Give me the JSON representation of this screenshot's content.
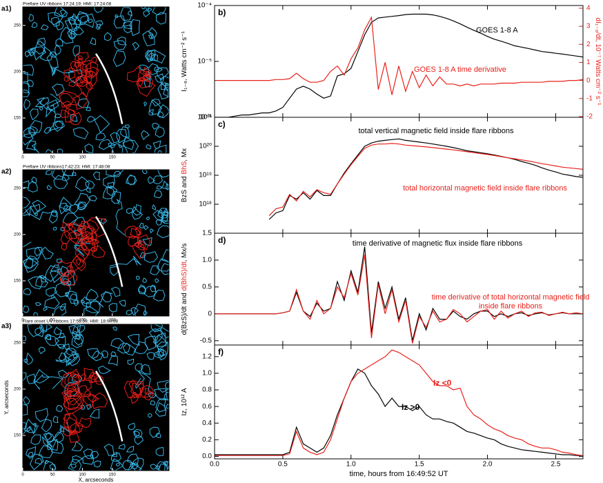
{
  "chart_data": [
    {
      "type": "image",
      "label": "a1)",
      "title": "Preflare UV ribbons 17:24:19; HMI: 17:24:08",
      "xlim": [
        0,
        245
      ],
      "ylim": [
        112,
        270
      ],
      "xticks": [
        0,
        50,
        100,
        150
      ],
      "yticks": [
        150,
        200,
        250
      ]
    },
    {
      "type": "image",
      "label": "a2)",
      "title": "Preflare UV ribbons17:42:23; HMI: 17:48:08",
      "xlim": [
        0,
        245
      ],
      "ylim": [
        112,
        270
      ],
      "xticks": [
        0,
        50,
        100,
        150
      ],
      "yticks": [
        150,
        200,
        250
      ]
    },
    {
      "type": "image",
      "label": "a3)",
      "title": "Flare onset UV ribbons 17:55:39; HMI: 18:00:08",
      "xlim": [
        0,
        245
      ],
      "ylim": [
        112,
        270
      ],
      "xticks": [
        0,
        50,
        100,
        150
      ],
      "yticks": [
        150,
        200,
        250
      ],
      "xlabel": "X, arcseconds",
      "ylabel": "Y, arcseconds"
    },
    {
      "type": "line",
      "label": "b)",
      "ylog": true,
      "xlim": [
        0,
        2.7
      ],
      "ylim": [
        1e-06,
        0.0001
      ],
      "yticks": [
        {
          "value": 1e-06,
          "label": "10⁻⁶"
        },
        {
          "value": 1e-05,
          "label": "10⁻⁵"
        },
        {
          "value": 0.0001,
          "label": "10⁻⁴"
        }
      ],
      "y2lim": [
        -2.04,
        4.15
      ],
      "y2ticks": [
        -2,
        -1,
        0,
        1,
        2,
        3,
        4
      ],
      "ylabel": [
        {
          "text": "I₁₋₈, Watts cm⁻² s⁻¹",
          "color": "#000000"
        }
      ],
      "y2label": [
        {
          "text": "dI₁₋₈/dt, 10⁻⁷ Watts cm⁻² s⁻¹",
          "color": "#e8201a"
        }
      ],
      "x": [
        0,
        0.05,
        0.1,
        0.15,
        0.2,
        0.25,
        0.3,
        0.35,
        0.4,
        0.45,
        0.5,
        0.55,
        0.6,
        0.65,
        0.7,
        0.75,
        0.8,
        0.85,
        0.9,
        0.95,
        1,
        1.05,
        1.1,
        1.15,
        1.2,
        1.25,
        1.3,
        1.35,
        1.4,
        1.45,
        1.5,
        1.55,
        1.6,
        1.65,
        1.7,
        1.75,
        1.8,
        1.85,
        1.9,
        1.95,
        2,
        2.05,
        2.1,
        2.15,
        2.2,
        2.25,
        2.3,
        2.35,
        2.4,
        2.45,
        2.5,
        2.55,
        2.6,
        2.65,
        2.7
      ],
      "series": [
        {
          "name": "GOES 1-8 A",
          "color": "#000000",
          "values": [
            1e-06,
            1e-06,
            1e-06,
            1.05e-06,
            1.1e-06,
            1.1e-06,
            1.15e-06,
            1.2e-06,
            1.2e-06,
            1.3e-06,
            1.5e-06,
            2.2e-06,
            3.2e-06,
            3.6e-06,
            3.2e-06,
            2.6e-06,
            2.2e-06,
            2.4e-06,
            5.5e-06,
            6e-06,
            7.5e-06,
            1.5e-05,
            3e-05,
            5e-05,
            6e-05,
            6.2e-05,
            6.4e-05,
            6.6e-05,
            6.9e-05,
            7e-05,
            7e-05,
            7e-05,
            6.8e-05,
            6.4e-05,
            5.9e-05,
            5.3e-05,
            4.7e-05,
            4.1e-05,
            3.6e-05,
            3.2e-05,
            2.8e-05,
            2.5e-05,
            2.3e-05,
            2.1e-05,
            1.9e-05,
            1.8e-05,
            1.7e-05,
            1.6e-05,
            1.5e-05,
            1.45e-05,
            1.4e-05,
            1.35e-05,
            1.3e-05,
            1.25e-05,
            1.2e-05
          ]
        },
        {
          "name": "GOES 1-8 A time derivative",
          "color": "#e8201a",
          "axis": "y2",
          "values": [
            0,
            0,
            0,
            0,
            0,
            0,
            0,
            0,
            0,
            0.05,
            0.05,
            0.1,
            0.4,
            0.1,
            -0.1,
            -0.1,
            0,
            0.5,
            0.8,
            0.3,
            1.2,
            1.8,
            2.8,
            3.5,
            -0.5,
            1.0,
            -0.8,
            0.8,
            -0.6,
            0.5,
            -0.4,
            0.3,
            -0.3,
            0.2,
            -0.2,
            -0.2,
            -0.3,
            -0.2,
            -0.3,
            -0.2,
            -0.2,
            -0.2,
            -0.15,
            -0.15,
            -0.15,
            -0.1,
            -0.1,
            -0.1,
            -0.1,
            -0.05,
            -0.05,
            -0.05,
            0,
            0,
            0.05
          ]
        }
      ]
    },
    {
      "type": "line",
      "label": "c)",
      "ylog": true,
      "xlim": [
        0,
        2.7
      ],
      "ylim": [
        1e+17,
        1e+21
      ],
      "yticks": [
        {
          "value": 1e+18,
          "label": "10¹⁸"
        },
        {
          "value": 1e+19,
          "label": "10¹⁹"
        },
        {
          "value": 1e+20,
          "label": "10²⁰"
        },
        {
          "value": 1e+21,
          "label": "10²¹"
        }
      ],
      "ylabel": [
        {
          "text": "BzS and ",
          "color": "#000000"
        },
        {
          "text": "BhS",
          "color": "#e8201a"
        },
        {
          "text": ", Mx",
          "color": "#000000"
        }
      ],
      "x": [
        0,
        0.05,
        0.1,
        0.15,
        0.2,
        0.25,
        0.3,
        0.35,
        0.4,
        0.45,
        0.5,
        0.55,
        0.6,
        0.65,
        0.7,
        0.75,
        0.8,
        0.85,
        0.9,
        0.95,
        1,
        1.05,
        1.1,
        1.15,
        1.2,
        1.25,
        1.3,
        1.35,
        1.4,
        1.45,
        1.5,
        1.55,
        1.6,
        1.65,
        1.7,
        1.75,
        1.8,
        1.85,
        1.9,
        1.95,
        2,
        2.05,
        2.1,
        2.15,
        2.2,
        2.25,
        2.3,
        2.35,
        2.4,
        2.45,
        2.5,
        2.55,
        2.6,
        2.65,
        2.7
      ],
      "series": [
        {
          "name": "total vertical magnetic field inside flare ribbons",
          "color": "#000000",
          "values": [
            null,
            null,
            null,
            null,
            null,
            null,
            null,
            null,
            3e+17,
            5e+17,
            6e+17,
            2e+18,
            1.5e+18,
            2.5e+18,
            1.5e+18,
            3e+18,
            2e+18,
            2e+18,
            5e+18,
            1.2e+19,
            2.5e+19,
            5e+19,
            1e+20,
            1.3e+20,
            1.5e+20,
            1.6e+20,
            1.7e+20,
            1.8e+20,
            1.6e+20,
            1.5e+20,
            1.4e+20,
            1.3e+20,
            1.2e+20,
            1.1e+20,
            1e+20,
            9e+19,
            8e+19,
            7e+19,
            6.5e+19,
            6e+19,
            5.5e+19,
            5e+19,
            4.5e+19,
            4e+19,
            3.5e+19,
            3e+19,
            2.6e+19,
            2.2e+19,
            1.8e+19,
            1.5e+19,
            1.3e+19,
            1.1e+19,
            1e+19,
            9e+18,
            8.5e+18
          ]
        },
        {
          "name": "total horizontal magnetic field inside flare ribbons",
          "color": "#e8201a",
          "values": [
            null,
            null,
            null,
            null,
            null,
            null,
            null,
            null,
            4e+17,
            7e+17,
            8e+17,
            2.2e+18,
            1.3e+18,
            2.8e+18,
            1.8e+18,
            3.2e+18,
            2.5e+18,
            2.2e+18,
            5e+18,
            1.1e+19,
            2.3e+19,
            4.5e+19,
            8.5e+19,
            1.1e+20,
            1.2e+20,
            1.2e+20,
            1.25e+20,
            1.2e+20,
            1.1e+20,
            1.05e+20,
            1e+20,
            9.5e+19,
            9e+19,
            8.5e+19,
            8e+19,
            7.5e+19,
            7e+19,
            6.5e+19,
            6e+19,
            5.6e+19,
            5.2e+19,
            4.8e+19,
            4.4e+19,
            4e+19,
            3.7e+19,
            3.4e+19,
            3.1e+19,
            2.8e+19,
            2.5e+19,
            2.3e+19,
            2.1e+19,
            1.9e+19,
            1.8e+19,
            1.7e+19,
            1.6e+19
          ]
        }
      ]
    },
    {
      "type": "line",
      "label": "d)",
      "xlim": [
        0,
        2.7
      ],
      "ylim": [
        -0.58,
        1.5
      ],
      "yticks": [
        -0.5,
        0,
        0.5,
        {
          "value": 1,
          "label": "1.0"
        },
        1.5
      ],
      "ylabel": [
        {
          "text": "d(BzS)/dt and ",
          "color": "#000000"
        },
        {
          "text": "d(BhS)/dt",
          "color": "#e8201a"
        },
        {
          "text": ", Mx/s",
          "color": "#000000"
        }
      ],
      "x": [
        0,
        0.05,
        0.1,
        0.15,
        0.2,
        0.25,
        0.3,
        0.35,
        0.4,
        0.45,
        0.5,
        0.55,
        0.6,
        0.65,
        0.7,
        0.75,
        0.8,
        0.85,
        0.9,
        0.95,
        1,
        1.05,
        1.1,
        1.15,
        1.2,
        1.25,
        1.3,
        1.35,
        1.4,
        1.45,
        1.5,
        1.55,
        1.6,
        1.65,
        1.7,
        1.75,
        1.8,
        1.85,
        1.9,
        1.95,
        2,
        2.05,
        2.1,
        2.15,
        2.2,
        2.25,
        2.3,
        2.35,
        2.4,
        2.45,
        2.5,
        2.55,
        2.6,
        2.65,
        2.7
      ],
      "series": [
        {
          "name": "time derivative of magnetic flux inside flare ribbons",
          "color": "#000000",
          "values": [
            0,
            0,
            0,
            0,
            0,
            0,
            0,
            0,
            0,
            0,
            0.02,
            0.05,
            0.4,
            0.05,
            -0.05,
            0.2,
            0.05,
            0.1,
            0.6,
            0.25,
            0.8,
            0.4,
            1.25,
            -0.35,
            0.6,
            0.1,
            0.5,
            -0.1,
            0.3,
            -0.5,
            0,
            -0.3,
            0.1,
            -0.1,
            -0.1,
            0.05,
            -0.05,
            -0.1,
            0,
            0.05,
            0.05,
            -0.05,
            0,
            -0.05,
            0,
            0.02,
            -0.03,
            0,
            0.02,
            -0.02,
            0,
            0.02,
            0,
            0,
            0
          ]
        },
        {
          "name": "time derivative of total horizontal magnetic field inside flare ribbons",
          "color": "#e8201a",
          "values": [
            0,
            0,
            0,
            0,
            0,
            0,
            0,
            0,
            0,
            0,
            0.02,
            0.05,
            0.45,
            0.05,
            -0.1,
            0.25,
            0,
            0.1,
            0.5,
            0.3,
            0.75,
            0.35,
            1.1,
            -0.45,
            0.55,
            0,
            0.45,
            -0.15,
            0.25,
            -0.55,
            -0.05,
            -0.25,
            0.05,
            -0.15,
            -0.1,
            0.08,
            0,
            -0.15,
            -0.05,
            0.05,
            0.08,
            -0.1,
            0.05,
            -0.08,
            0,
            0.05,
            -0.05,
            0.02,
            0.03,
            -0.03,
            0,
            0.03,
            0,
            0.02,
            0
          ]
        }
      ]
    },
    {
      "type": "line",
      "label": "f)",
      "xlim": [
        0,
        2.7
      ],
      "ylim": [
        -0.03,
        1.34
      ],
      "yticks": [
        {
          "value": 0,
          "label": "0.0"
        },
        0.2,
        0.4,
        0.6,
        0.8,
        {
          "value": 1,
          "label": "1.0"
        },
        1.2
      ],
      "xticks": [
        {
          "value": 0,
          "label": "0.0"
        },
        0.5,
        {
          "value": 1,
          "label": "1.0"
        },
        1.5,
        {
          "value": 2,
          "label": "2.0"
        },
        2.5
      ],
      "xlabel": "time, hours from 16:49:52 UT",
      "ylabel": [
        {
          "text": "Iz, 10¹² A",
          "color": "#000000"
        }
      ],
      "x": [
        0,
        0.05,
        0.1,
        0.15,
        0.2,
        0.25,
        0.3,
        0.35,
        0.4,
        0.45,
        0.5,
        0.55,
        0.6,
        0.65,
        0.7,
        0.75,
        0.8,
        0.85,
        0.9,
        0.95,
        1,
        1.05,
        1.1,
        1.15,
        1.2,
        1.25,
        1.3,
        1.35,
        1.4,
        1.45,
        1.5,
        1.55,
        1.6,
        1.65,
        1.7,
        1.75,
        1.8,
        1.85,
        1.9,
        1.95,
        2,
        2.05,
        2.1,
        2.15,
        2.2,
        2.25,
        2.3,
        2.35,
        2.4,
        2.45,
        2.5,
        2.55,
        2.6,
        2.65,
        2.7
      ],
      "series": [
        {
          "name": "Iz >0",
          "color": "#000000",
          "values": [
            0.02,
            0.02,
            0.02,
            0.02,
            0.02,
            0.02,
            0.02,
            0.02,
            0.02,
            0.02,
            0.02,
            0.05,
            0.35,
            0.15,
            0.1,
            0.05,
            0.1,
            0.25,
            0.5,
            0.7,
            0.9,
            1.05,
            1.0,
            0.85,
            0.75,
            0.6,
            0.7,
            0.6,
            0.6,
            0.55,
            0.6,
            0.5,
            0.45,
            0.45,
            0.42,
            0.4,
            0.35,
            0.3,
            0.28,
            0.25,
            0.22,
            0.2,
            0.15,
            0.12,
            0.1,
            0.08,
            0.07,
            0.06,
            0.05,
            0.04,
            0.03,
            0.02,
            0.02,
            0.01,
            0.01
          ]
        },
        {
          "name": "Iz <0",
          "color": "#e8201a",
          "values": [
            0.01,
            0.01,
            0.01,
            0.01,
            0.01,
            0.01,
            0.01,
            0.01,
            0.01,
            0.01,
            0.01,
            0.03,
            0.3,
            0.1,
            0.05,
            0.02,
            0.05,
            0.2,
            0.45,
            0.7,
            0.9,
            1.0,
            1.05,
            1.1,
            1.15,
            1.2,
            1.28,
            1.25,
            1.2,
            1.15,
            1.1,
            1.0,
            0.9,
            0.85,
            0.85,
            0.8,
            0.82,
            0.6,
            0.5,
            0.45,
            0.38,
            0.33,
            0.3,
            0.25,
            0.22,
            0.2,
            0.15,
            0.12,
            0.1,
            0.1,
            0.08,
            0.05,
            0.04,
            0.02,
            0.01
          ]
        }
      ]
    }
  ]
}
